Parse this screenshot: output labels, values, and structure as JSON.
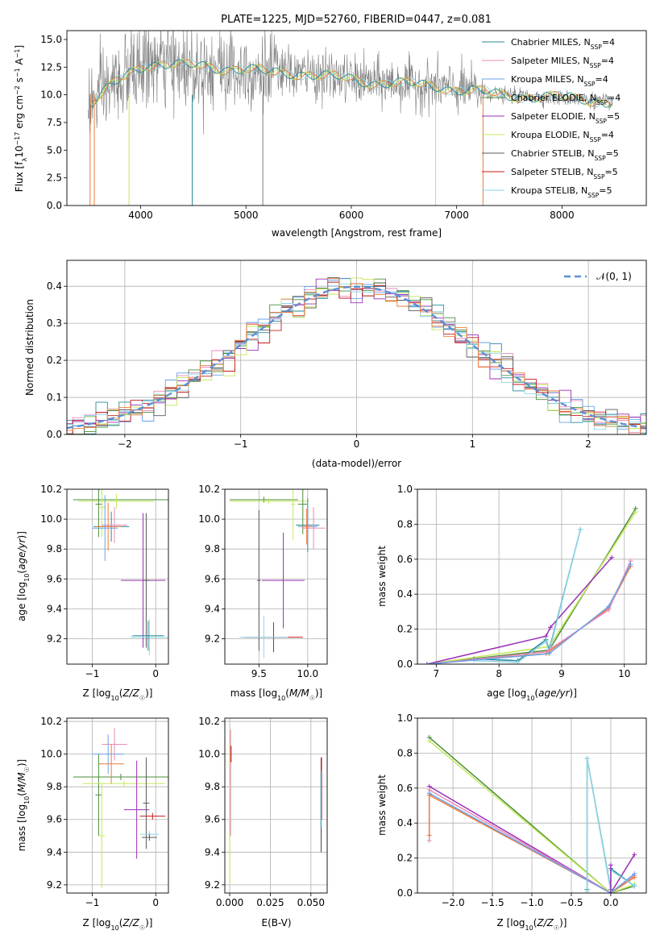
{
  "title": "PLATE=1225, MJD=52760, FIBERID=0447, z=0.081",
  "colors": {
    "Chabrier MILES": "#2a8a9a",
    "Salpeter MILES": "#e98ab9",
    "Kroupa MILES": "#6aa0e8",
    "Chabrier ELODIE": "#4a8f3a",
    "Salpeter ELODIE": "#9b30b5",
    "Kroupa ELODIE": "#c6e85a",
    "Chabrier STELIB": "#5a5a5a",
    "Salpeter STELIB": "#c81a1a",
    "Kroupa STELIB": "#8fd6e6",
    "orange": "#ee7b3a",
    "data": "#7f7f7f",
    "normal": "#5b8fd6"
  },
  "chart_data": [
    {
      "id": "spectrum",
      "type": "line",
      "title": "PLATE=1225, MJD=52760, FIBERID=0447, z=0.081",
      "xlabel": "wavelength [Angstrom, rest frame]",
      "ylabel": "Flux [f_λ10⁻¹⁷ erg cm⁻² s⁻¹ A⁻¹]",
      "xlim": [
        3300,
        8800
      ],
      "ylim": [
        0,
        15.8
      ],
      "xticks": [
        "4000",
        "5000",
        "6000",
        "7000",
        "8000"
      ],
      "yticks": [
        "0.0",
        "2.5",
        "5.0",
        "7.5",
        "10.0",
        "12.5",
        "15.0"
      ],
      "legend": [
        {
          "label": "Chabrier MILES, N",
          "sub": "SSP",
          "n": "=4"
        },
        {
          "label": "Salpeter MILES, N",
          "sub": "SSP",
          "n": "=4"
        },
        {
          "label": "Kroupa MILES, N",
          "sub": "SSP",
          "n": "=4"
        },
        {
          "label": "Chabrier ELODIE, N",
          "sub": "SSP",
          "n": "=4"
        },
        {
          "label": "Salpeter ELODIE, N",
          "sub": "SSP",
          "n": "=5"
        },
        {
          "label": "Kroupa ELODIE, N",
          "sub": "SSP",
          "n": "=4"
        },
        {
          "label": "Chabrier STELIB, N",
          "sub": "SSP",
          "n": "=5"
        },
        {
          "label": "Salpeter STELIB, N",
          "sub": "SSP",
          "n": "=5"
        },
        {
          "label": "Kroupa STELIB, N",
          "sub": "SSP",
          "n": "=5"
        }
      ],
      "legend_position": "right",
      "model_continuum": {
        "x": [
          3550,
          3700,
          3900,
          4050,
          4200,
          4400,
          4600,
          4800,
          5000,
          5200,
          5400,
          5600,
          5800,
          6000,
          6200,
          6400,
          6600,
          6800,
          7000,
          7200,
          7400,
          7600,
          7800,
          8000,
          8200,
          8400
        ],
        "y": [
          9.3,
          10.6,
          12.0,
          12.8,
          12.8,
          12.6,
          12.6,
          12.4,
          12.3,
          12.0,
          12.0,
          11.9,
          11.6,
          11.4,
          11.1,
          11.1,
          10.9,
          10.8,
          10.5,
          10.3,
          10.0,
          9.9,
          9.8,
          9.7,
          9.6,
          9.4
        ]
      }
    },
    {
      "id": "residuals",
      "type": "area",
      "xlabel": "(data-model)/error",
      "ylabel": "Normed distribution",
      "xlim": [
        -2.5,
        2.5
      ],
      "ylim": [
        0,
        0.47
      ],
      "xticks": [
        "−2",
        "−1",
        "0",
        "1",
        "2"
      ],
      "yticks": [
        "0.0",
        "0.1",
        "0.2",
        "0.3",
        "0.4"
      ],
      "legend": "𝒩(0, 1)",
      "legend_position": "top-right",
      "bin_width": 0.1
    },
    {
      "id": "age-Z",
      "type": "scatter",
      "xlabel": "Z [log₁₀(Z/Z☉)]",
      "ylabel": "age  [log₁₀(age/yr)]",
      "xlim": [
        -1.4,
        0.2
      ],
      "ylim": [
        9.03,
        10.2
      ],
      "xticks": [
        "−1",
        "0"
      ],
      "yticks": [
        "9.2",
        "9.4",
        "9.6",
        "9.8",
        "10.0",
        "10.2"
      ]
    },
    {
      "id": "age-mass",
      "type": "scatter",
      "xlabel": "mass [log₁₀(M/M☉)]",
      "xlim": [
        9.15,
        10.2
      ],
      "ylim": [
        9.03,
        10.2
      ],
      "xticks": [
        "9.5",
        "10.0"
      ],
      "yticks": [
        "9.2",
        "9.4",
        "9.6",
        "9.8",
        "10.0",
        "10.2"
      ]
    },
    {
      "id": "mw-age",
      "type": "line",
      "xlabel": "age  [log₁₀(age/yr)]",
      "ylabel": "mass weight",
      "xlim": [
        6.7,
        10.35
      ],
      "ylim": [
        0,
        1.0
      ],
      "xticks": [
        "7",
        "8",
        "9",
        "10"
      ],
      "yticks": [
        "0.0",
        "0.2",
        "0.4",
        "0.6",
        "0.8",
        "1.0"
      ]
    },
    {
      "id": "mass-Z",
      "type": "scatter",
      "xlabel": "Z [log₁₀(Z/Z☉)]",
      "ylabel": "mass [log₁₀(M/M☉)]",
      "xlim": [
        -1.4,
        0.2
      ],
      "ylim": [
        9.15,
        10.22
      ],
      "xticks": [
        "−1",
        "0"
      ],
      "yticks": [
        "9.2",
        "9.4",
        "9.6",
        "9.8",
        "10.0",
        "10.2"
      ]
    },
    {
      "id": "mass-ebv",
      "type": "scatter",
      "xlabel": "E(B-V)",
      "xlim": [
        -0.003,
        0.06
      ],
      "ylim": [
        9.15,
        10.22
      ],
      "xticks": [
        "0.000",
        "0.025",
        "0.050"
      ],
      "yticks": [
        "9.2",
        "9.4",
        "9.6",
        "9.8",
        "10.0",
        "10.2"
      ]
    },
    {
      "id": "mw-Z",
      "type": "line",
      "xlabel": "Z [log₁₀(Z/Z☉)]",
      "ylabel": "mass weight",
      "xlim": [
        -2.45,
        0.45
      ],
      "ylim": [
        0,
        1.0
      ],
      "xticks": [
        "−2.0",
        "−1.5",
        "−1.0",
        "−0.5",
        "0.0"
      ],
      "yticks": [
        "0.0",
        "0.2",
        "0.4",
        "0.6",
        "0.8",
        "1.0"
      ]
    }
  ]
}
